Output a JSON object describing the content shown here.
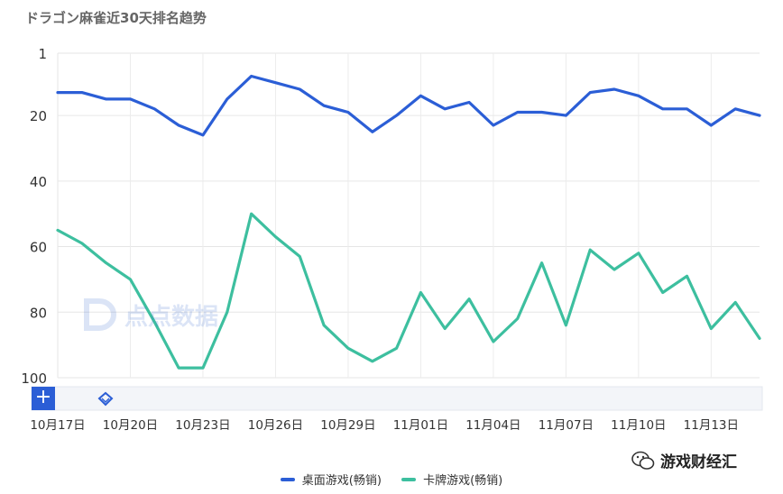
{
  "title": "ドラゴン麻雀近30天排名趋势",
  "watermark_text": "点点数据",
  "watermark_brand": "游戏财经汇",
  "chart_data": {
    "type": "line",
    "title": "ドラゴン麻雀近30天排名趋势",
    "y_reversed": true,
    "ylim": [
      1,
      100
    ],
    "yticks": [
      1,
      20,
      40,
      60,
      80,
      100
    ],
    "x": [
      "10月17日",
      "10月18日",
      "10月19日",
      "10月20日",
      "10月21日",
      "10月22日",
      "10月23日",
      "10月24日",
      "10月25日",
      "10月26日",
      "10月27日",
      "10月28日",
      "10月29日",
      "10月30日",
      "10月31日",
      "11月01日",
      "11月02日",
      "11月03日",
      "11月04日",
      "11月05日",
      "11月06日",
      "11月07日",
      "11月08日",
      "11月09日",
      "11月10日",
      "11月11日",
      "11月12日",
      "11月13日",
      "11月14日",
      "11月15日"
    ],
    "xticks": [
      "10月17日",
      "10月20日",
      "10月23日",
      "10月26日",
      "10月29日",
      "11月01日",
      "11月04日",
      "11月07日",
      "11月10日",
      "11月13日"
    ],
    "series": [
      {
        "name": "桌面游戏(畅销)",
        "color": "#2b5ed6",
        "values": [
          13,
          13,
          15,
          15,
          18,
          23,
          26,
          15,
          8,
          10,
          12,
          17,
          19,
          25,
          20,
          14,
          18,
          16,
          23,
          19,
          19,
          20,
          13,
          12,
          14,
          18,
          18,
          23,
          18,
          20
        ]
      },
      {
        "name": "卡牌游戏(畅销)",
        "color": "#3dbf9f",
        "values": [
          55,
          59,
          65,
          70,
          83,
          97,
          97,
          80,
          50,
          57,
          63,
          84,
          91,
          95,
          91,
          74,
          85,
          76,
          89,
          82,
          65,
          84,
          61,
          67,
          62,
          74,
          69,
          85,
          77,
          88
        ]
      }
    ],
    "grid": true,
    "legend": "bottom"
  }
}
